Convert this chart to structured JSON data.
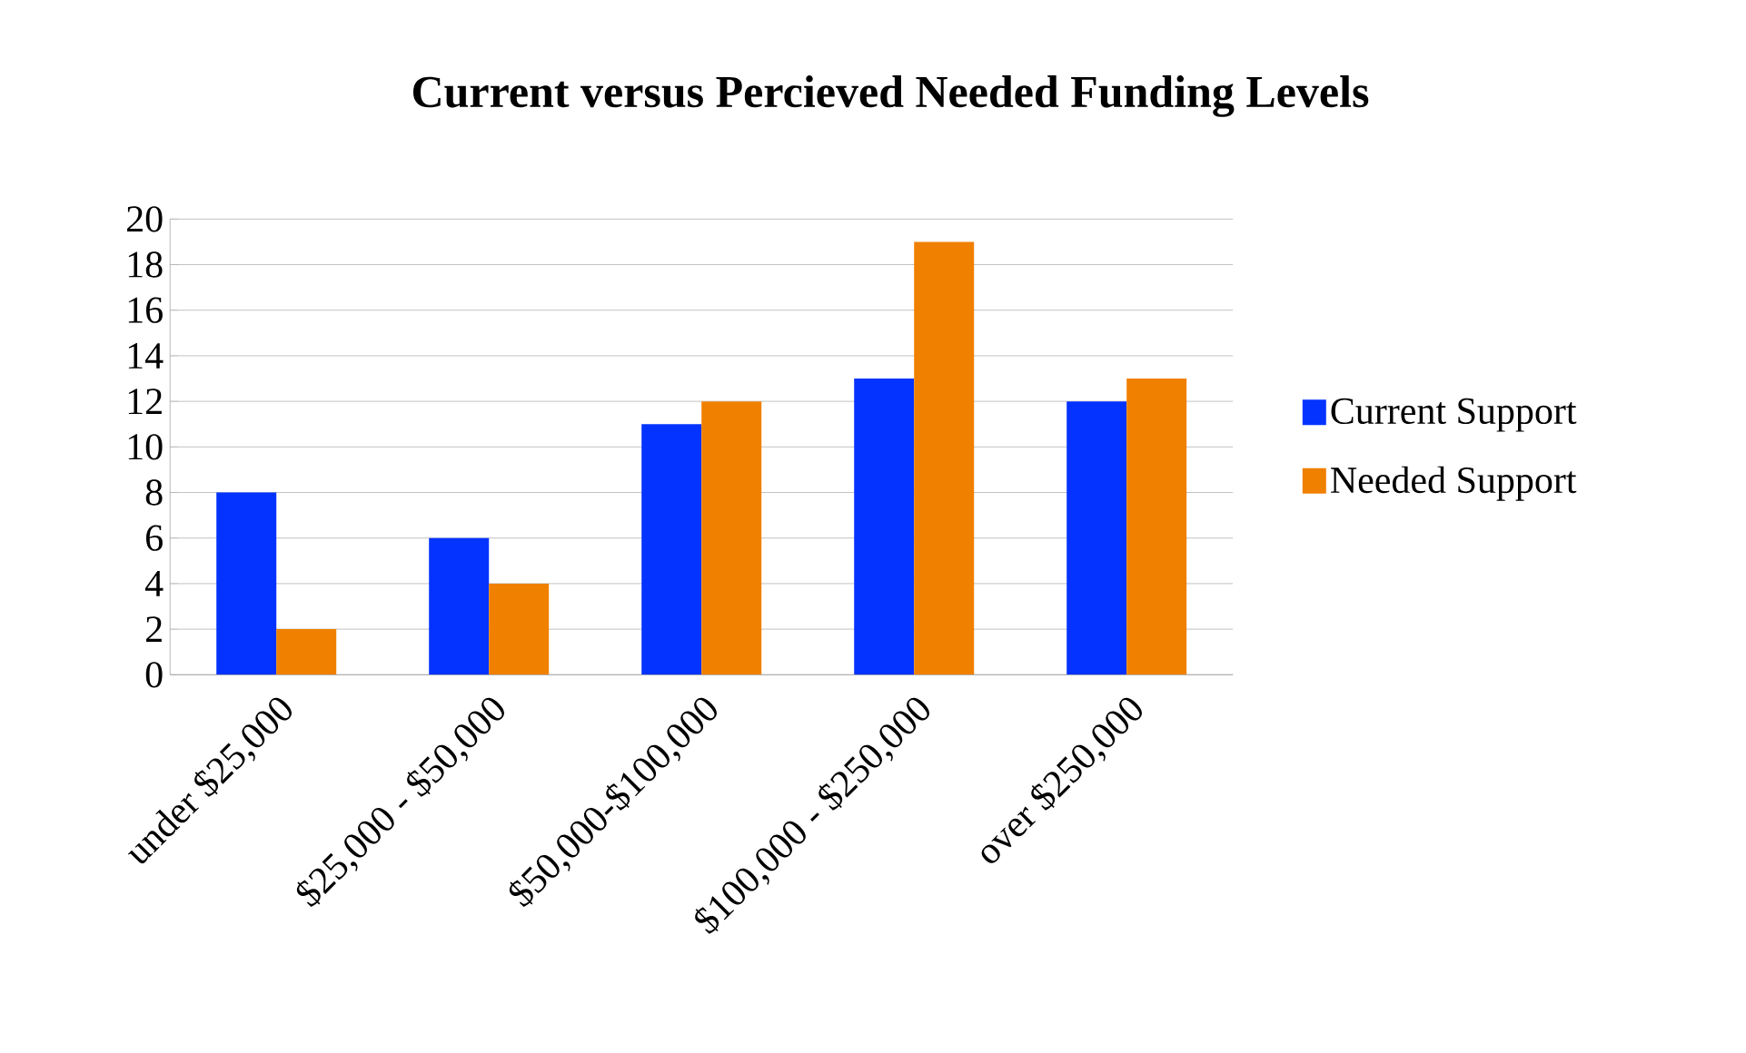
{
  "chart_data": {
    "type": "bar",
    "title": "Current versus Percieved Needed Funding Levels",
    "categories": [
      "under $25,000",
      "$25,000 - $50,000",
      "$50,000-$100,000",
      "$100,000 - $250,000",
      "over $250,000"
    ],
    "series": [
      {
        "name": "Current Support",
        "color": "#0433ff",
        "values": [
          8,
          6,
          11,
          13,
          12
        ]
      },
      {
        "name": "Needed Support",
        "color": "#f08000",
        "values": [
          2,
          4,
          12,
          19,
          13
        ]
      }
    ],
    "ylim": [
      0,
      20
    ],
    "yticks": [
      0,
      2,
      4,
      6,
      8,
      10,
      12,
      14,
      16,
      18,
      20
    ],
    "grid": "y",
    "legend": "right"
  }
}
